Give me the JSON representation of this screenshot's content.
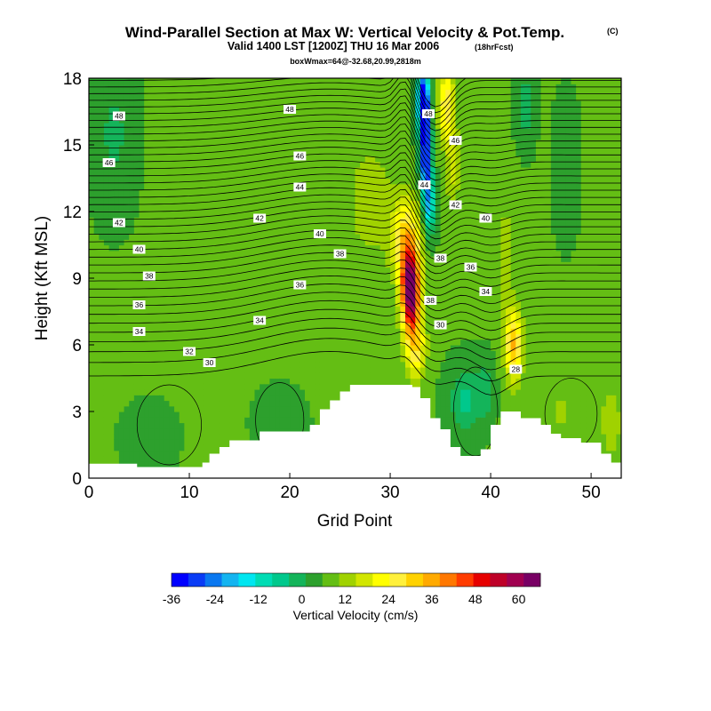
{
  "chart_data": {
    "type": "heatmap",
    "title": "Wind-Parallel Section at Max W: Vertical Velocity & Pot.Temp.",
    "copyright_mark": "(C)",
    "subtitle": "Valid 1400 LST [1200Z] THU 16 Mar 2006",
    "subtitle_note": "(18hrFcst)",
    "info_line": "boxWmax=64@-32.68,20.99,2818m",
    "xlabel": "Grid Point",
    "ylabel": "Height (Kft MSL)",
    "xlim": [
      0,
      53
    ],
    "ylim": [
      0,
      18
    ],
    "xticks": [
      0,
      10,
      20,
      30,
      40,
      50
    ],
    "yticks": [
      0,
      3,
      6,
      9,
      12,
      15,
      18
    ],
    "colorbar": {
      "label": "Vertical Velocity (cm/s)",
      "range": [
        -36,
        66
      ],
      "ticks": [
        -36,
        -24,
        -12,
        0,
        12,
        24,
        36,
        48,
        60
      ],
      "colors": [
        "#0000ff",
        "#0a3cf5",
        "#0a78f0",
        "#14b4f0",
        "#00e6f0",
        "#00dcb4",
        "#00c88c",
        "#14b45a",
        "#2da02d",
        "#64be14",
        "#a0d200",
        "#d2e600",
        "#ffff00",
        "#fff03c",
        "#ffd200",
        "#ffaa00",
        "#ff7800",
        "#ff3c00",
        "#e60000",
        "#be0028",
        "#a00050",
        "#780064"
      ]
    },
    "background_w": 6,
    "w_features": [
      {
        "x": 32,
        "z": 8.5,
        "sx": 0.9,
        "sz": 1.7,
        "w": 62
      },
      {
        "x": 31.6,
        "z": 10.8,
        "sx": 1.4,
        "sz": 1.8,
        "w": 24
      },
      {
        "x": 32.5,
        "z": 6.0,
        "sx": 1.0,
        "sz": 1.5,
        "w": 22
      },
      {
        "x": 33.3,
        "z": 16.9,
        "sx": 0.6,
        "sz": 1.3,
        "w": -50
      },
      {
        "x": 33.5,
        "z": 14.5,
        "sx": 0.55,
        "sz": 1.7,
        "w": -42
      },
      {
        "x": 33.9,
        "z": 12.3,
        "sx": 0.55,
        "sz": 1.4,
        "w": -22
      },
      {
        "x": 35.6,
        "z": 16.8,
        "sx": 0.8,
        "sz": 1.6,
        "w": 22
      },
      {
        "x": 36.2,
        "z": 14.0,
        "sx": 0.7,
        "sz": 2.0,
        "w": 10
      },
      {
        "x": 42.3,
        "z": 6.0,
        "sx": 0.85,
        "sz": 1.6,
        "w": 28
      },
      {
        "x": 41.5,
        "z": 10.0,
        "sx": 0.7,
        "sz": 2.5,
        "w": 8
      },
      {
        "x": 37.5,
        "z": 3.5,
        "sx": 1.6,
        "sz": 1.4,
        "w": -11
      },
      {
        "x": 39.5,
        "z": 4.0,
        "sx": 0.8,
        "sz": 1.2,
        "w": -7
      },
      {
        "x": 43.5,
        "z": 16.8,
        "sx": 0.8,
        "sz": 1.5,
        "w": -9
      },
      {
        "x": 2.5,
        "z": 15.5,
        "sx": 1.8,
        "sz": 3.0,
        "w": -6
      },
      {
        "x": 6,
        "z": 1.8,
        "sx": 2.0,
        "sz": 1.2,
        "w": -5
      },
      {
        "x": 19,
        "z": 2.5,
        "sx": 2.0,
        "sz": 1.2,
        "w": -4
      },
      {
        "x": 28,
        "z": 12.5,
        "sx": 2.5,
        "sz": 3.0,
        "w": 7
      },
      {
        "x": 47,
        "z": 3.0,
        "sx": 2.0,
        "sz": 1.5,
        "w": 5
      },
      {
        "x": 52,
        "z": 2.5,
        "sx": 1.0,
        "sz": 1.5,
        "w": 9
      },
      {
        "x": 47.5,
        "z": 14.0,
        "sx": 1.0,
        "sz": 2.5,
        "w": -5
      }
    ],
    "terrain": [
      [
        0,
        0.65
      ],
      [
        4.8,
        0.65
      ],
      [
        4.8,
        0.5
      ],
      [
        8.5,
        0.5
      ],
      [
        11.3,
        0.5
      ],
      [
        11.3,
        0.7
      ],
      [
        12,
        0.7
      ],
      [
        12,
        1.1
      ],
      [
        13,
        1.1
      ],
      [
        13,
        1.4
      ],
      [
        14,
        1.4
      ],
      [
        14,
        1.7
      ],
      [
        17,
        1.7
      ],
      [
        17,
        2.1
      ],
      [
        22,
        2.1
      ],
      [
        22,
        2.4
      ],
      [
        23,
        2.4
      ],
      [
        23,
        3.1
      ],
      [
        24,
        3.1
      ],
      [
        24,
        3.5
      ],
      [
        25,
        3.5
      ],
      [
        25,
        3.9
      ],
      [
        26,
        3.9
      ],
      [
        26,
        4.2
      ],
      [
        32.2,
        4.2
      ],
      [
        32.2,
        4.1
      ],
      [
        33,
        4.1
      ],
      [
        33,
        3.6
      ],
      [
        34,
        3.6
      ],
      [
        34,
        2.7
      ],
      [
        35,
        2.7
      ],
      [
        35,
        2.2
      ],
      [
        36,
        2.2
      ],
      [
        36,
        1.4
      ],
      [
        37,
        1.4
      ],
      [
        37,
        1.0
      ],
      [
        39,
        1.0
      ],
      [
        39,
        1.3
      ],
      [
        40,
        1.3
      ],
      [
        40,
        2.4
      ],
      [
        41,
        2.4
      ],
      [
        41,
        3.0
      ],
      [
        43,
        3.0
      ],
      [
        43,
        2.7
      ],
      [
        45,
        2.7
      ],
      [
        45,
        2.4
      ],
      [
        46,
        2.4
      ],
      [
        46,
        2.0
      ],
      [
        47,
        2.0
      ],
      [
        47,
        1.8
      ],
      [
        49,
        1.8
      ],
      [
        49,
        1.6
      ],
      [
        51,
        1.6
      ],
      [
        51,
        1.1
      ],
      [
        52,
        1.1
      ],
      [
        52,
        0.7
      ],
      [
        53,
        0.7
      ]
    ],
    "theta_contour_labels": [
      {
        "text": "48",
        "x": 3,
        "z": 16.3
      },
      {
        "text": "48",
        "x": 20,
        "z": 16.6
      },
      {
        "text": "48",
        "x": 33.8,
        "z": 16.4
      },
      {
        "text": "46",
        "x": 2,
        "z": 14.2
      },
      {
        "text": "46",
        "x": 21,
        "z": 14.5
      },
      {
        "text": "46",
        "x": 36.5,
        "z": 15.2
      },
      {
        "text": "44",
        "x": 21,
        "z": 13.1
      },
      {
        "text": "44",
        "x": 33.4,
        "z": 13.2
      },
      {
        "text": "42",
        "x": 3,
        "z": 11.5
      },
      {
        "text": "42",
        "x": 17,
        "z": 11.7
      },
      {
        "text": "42",
        "x": 36.5,
        "z": 12.3
      },
      {
        "text": "40",
        "x": 5,
        "z": 10.3
      },
      {
        "text": "40",
        "x": 23,
        "z": 11.0
      },
      {
        "text": "40",
        "x": 39.5,
        "z": 11.7
      },
      {
        "text": "38",
        "x": 6,
        "z": 9.1
      },
      {
        "text": "38",
        "x": 25,
        "z": 10.1
      },
      {
        "text": "38",
        "x": 35,
        "z": 9.9
      },
      {
        "text": "38",
        "x": 34,
        "z": 8.0
      },
      {
        "text": "36",
        "x": 5,
        "z": 7.8
      },
      {
        "text": "36",
        "x": 21,
        "z": 8.7
      },
      {
        "text": "36",
        "x": 38,
        "z": 9.5
      },
      {
        "text": "34",
        "x": 5,
        "z": 6.6
      },
      {
        "text": "34",
        "x": 17,
        "z": 7.1
      },
      {
        "text": "34",
        "x": 39.5,
        "z": 8.4
      },
      {
        "text": "32",
        "x": 10,
        "z": 5.7
      },
      {
        "text": "30",
        "x": 12,
        "z": 5.2
      },
      {
        "text": "30",
        "x": 35,
        "z": 6.9
      },
      {
        "text": "28",
        "x": 42.5,
        "z": 4.9
      }
    ]
  }
}
